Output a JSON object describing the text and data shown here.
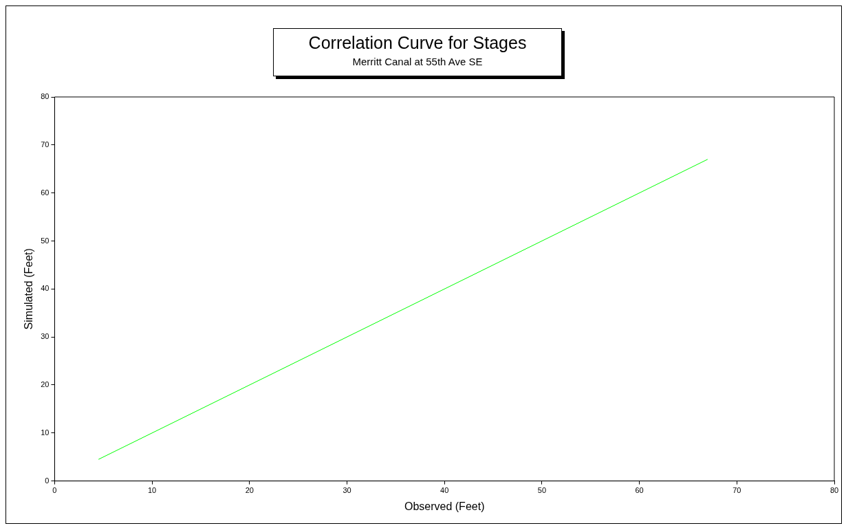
{
  "chart_data": {
    "type": "line",
    "title": "Correlation Curve for Stages",
    "subtitle": "Merritt Canal at 55th Ave SE",
    "xlabel": "Observed (Feet)",
    "ylabel": "Simulated (Feet)",
    "x": [
      4.5,
      67
    ],
    "series": [
      {
        "color": "#00ff00",
        "values": [
          4.5,
          67
        ]
      }
    ],
    "xlim": [
      0,
      80
    ],
    "xticks": [
      0,
      10,
      20,
      30,
      40,
      50,
      60,
      70,
      80
    ],
    "ylim": [
      0,
      80
    ],
    "yticks": [
      0,
      10,
      20,
      30,
      40,
      50,
      60,
      70,
      80
    ],
    "grid": false,
    "legend": false,
    "marker": "none",
    "line_style": "solid"
  }
}
